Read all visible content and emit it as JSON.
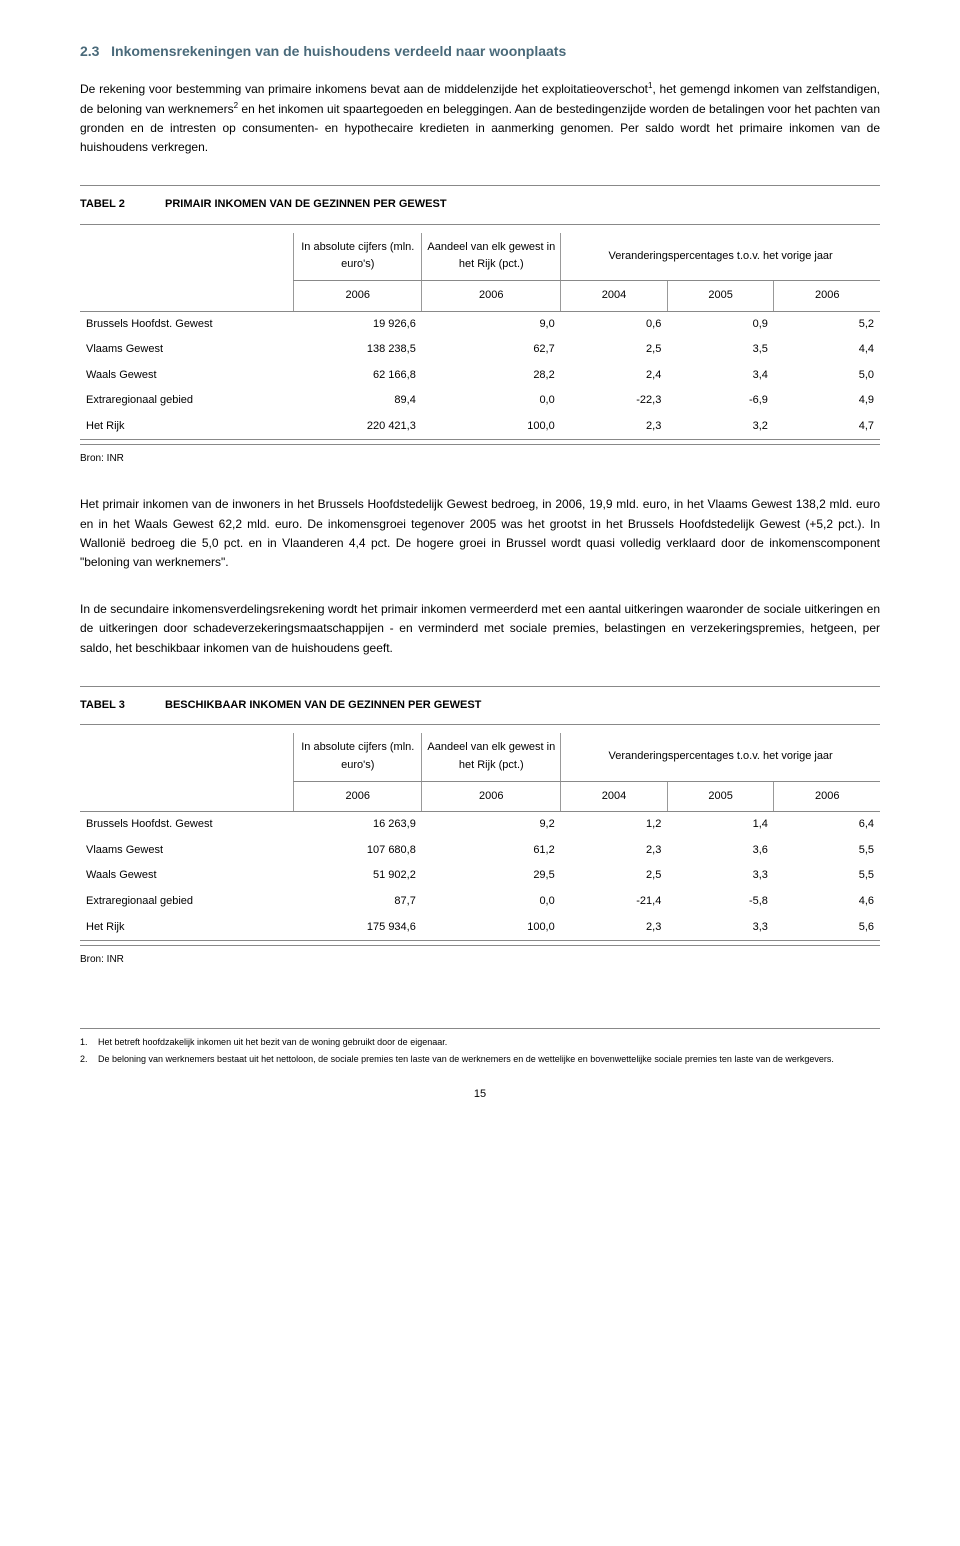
{
  "section": {
    "number": "2.3",
    "title": "Inkomensrekeningen van de huishoudens verdeeld naar woonplaats"
  },
  "para1_a": "De rekening voor bestemming van primaire inkomens bevat aan de middelenzijde het exploitatieoverschot",
  "para1_b": ", het gemengd inkomen van zelfstandigen, de beloning van werknemers",
  "para1_c": " en het inkomen uit spaartegoeden en beleggingen. Aan de bestedingenzijde worden de betalingen voor het pachten van gronden en de intresten op consumenten- en hypothecaire kredieten in aanmerking genomen. Per saldo wordt het primaire inkomen van de huishoudens verkregen.",
  "table2": {
    "label": "TABEL 2",
    "title": "PRIMAIR INKOMEN VAN DE GEZINNEN PER GEWEST",
    "col_abs": "In absolute cijfers (mln. euro's)",
    "col_share": "Aandeel van elk gewest in het Rijk (pct.)",
    "col_change": "Veranderingspercentages t.o.v. het vorige jaar",
    "years": [
      "2006",
      "2006",
      "2004",
      "2005",
      "2006"
    ],
    "rows": [
      {
        "label": "Brussels Hoofdst. Gewest",
        "v": [
          "19 926,6",
          "9,0",
          "0,6",
          "0,9",
          "5,2"
        ]
      },
      {
        "label": "Vlaams Gewest",
        "v": [
          "138 238,5",
          "62,7",
          "2,5",
          "3,5",
          "4,4"
        ]
      },
      {
        "label": "Waals Gewest",
        "v": [
          "62 166,8",
          "28,2",
          "2,4",
          "3,4",
          "5,0"
        ]
      },
      {
        "label": "Extraregionaal gebied",
        "v": [
          "89,4",
          "0,0",
          "-22,3",
          "-6,9",
          "4,9"
        ]
      },
      {
        "label": "Het Rijk",
        "v": [
          "220 421,3",
          "100,0",
          "2,3",
          "3,2",
          "4,7"
        ]
      }
    ],
    "source": "Bron: INR"
  },
  "para2": "Het primair inkomen van de inwoners in het Brussels Hoofdstedelijk Gewest bedroeg, in 2006, 19,9 mld. euro, in het Vlaams Gewest 138,2 mld. euro en in het Waals Gewest 62,2 mld. euro. De inkomensgroei tegenover 2005 was het grootst in het Brussels Hoofdstedelijk Gewest (+5,2 pct.). In Wallonië bedroeg die 5,0 pct. en in Vlaanderen 4,4 pct. De hogere groei in Brussel wordt quasi volledig verklaard door de inkomenscomponent \"beloning van werknemers\".",
  "para3": "In de secundaire inkomensverdelingsrekening wordt het primair inkomen vermeerderd met een aantal uitkeringen waaronder de sociale uitkeringen en de uitkeringen door schadeverzekeringsmaatschappijen - en verminderd met sociale premies, belastingen en verzekeringspremies, hetgeen, per saldo, het beschikbaar inkomen van de huishoudens geeft.",
  "table3": {
    "label": "TABEL 3",
    "title": "BESCHIKBAAR INKOMEN VAN DE GEZINNEN PER GEWEST",
    "col_abs": "In absolute cijfers (mln. euro's)",
    "col_share": "Aandeel van elk gewest in het Rijk (pct.)",
    "col_change": "Veranderingspercentages t.o.v. het vorige jaar",
    "years": [
      "2006",
      "2006",
      "2004",
      "2005",
      "2006"
    ],
    "rows": [
      {
        "label": "Brussels Hoofdst. Gewest",
        "v": [
          "16 263,9",
          "9,2",
          "1,2",
          "1,4",
          "6,4"
        ]
      },
      {
        "label": "Vlaams Gewest",
        "v": [
          "107 680,8",
          "61,2",
          "2,3",
          "3,6",
          "5,5"
        ]
      },
      {
        "label": "Waals Gewest",
        "v": [
          "51 902,2",
          "29,5",
          "2,5",
          "3,3",
          "5,5"
        ]
      },
      {
        "label": "Extraregionaal gebied",
        "v": [
          "87,7",
          "0,0",
          "-21,4",
          "-5,8",
          "4,6"
        ]
      },
      {
        "label": "Het Rijk",
        "v": [
          "175 934,6",
          "100,0",
          "2,3",
          "3,3",
          "5,6"
        ]
      }
    ],
    "source": "Bron: INR"
  },
  "footnotes": [
    {
      "n": "1.",
      "text": "Het betreft hoofdzakelijk inkomen uit het bezit van de woning gebruikt door de eigenaar."
    },
    {
      "n": "2.",
      "text": "De beloning van werknemers bestaat uit het nettoloon, de sociale premies ten laste van de werknemers en de wettelijke en bovenwettelijke sociale premies ten laste van de werkgevers."
    }
  ],
  "pagenum": "15"
}
